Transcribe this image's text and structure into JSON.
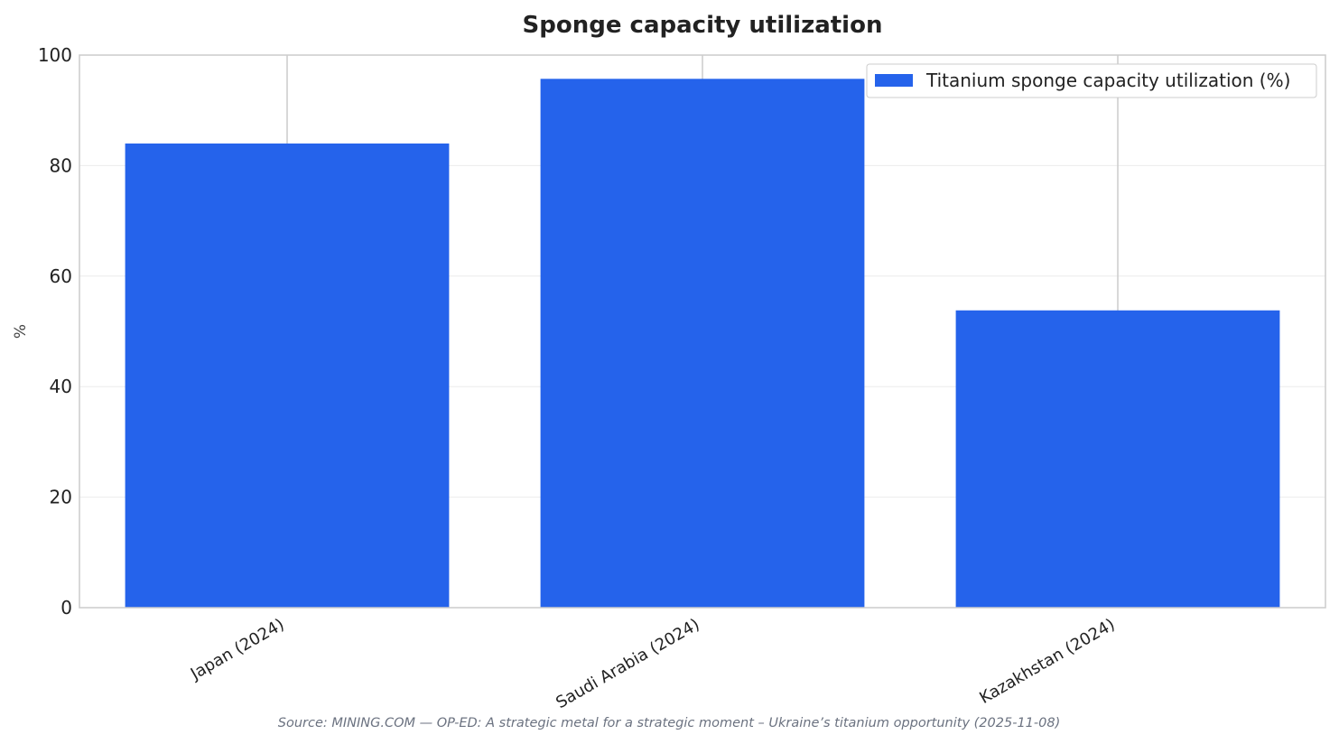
{
  "chart_data": {
    "type": "bar",
    "title": "Sponge capacity utilization",
    "xlabel": "",
    "ylabel": "%",
    "categories": [
      "Japan (2024)",
      "Saudi Arabia (2024)",
      "Kazakhstan (2024)"
    ],
    "series": [
      {
        "name": "Titanium sponge capacity utilization (%)",
        "values": [
          84,
          95.7,
          53.8
        ],
        "color": "#2563eb"
      }
    ],
    "ylim": [
      0,
      100
    ],
    "yticks": [
      "0",
      "20",
      "40",
      "60",
      "80",
      "100"
    ],
    "grid": true,
    "legend_position": "top-right",
    "source": "Source: MINING.COM — OP-ED: A strategic metal for a strategic moment – Ukraine’s titanium opportunity (2025-11-08)"
  }
}
